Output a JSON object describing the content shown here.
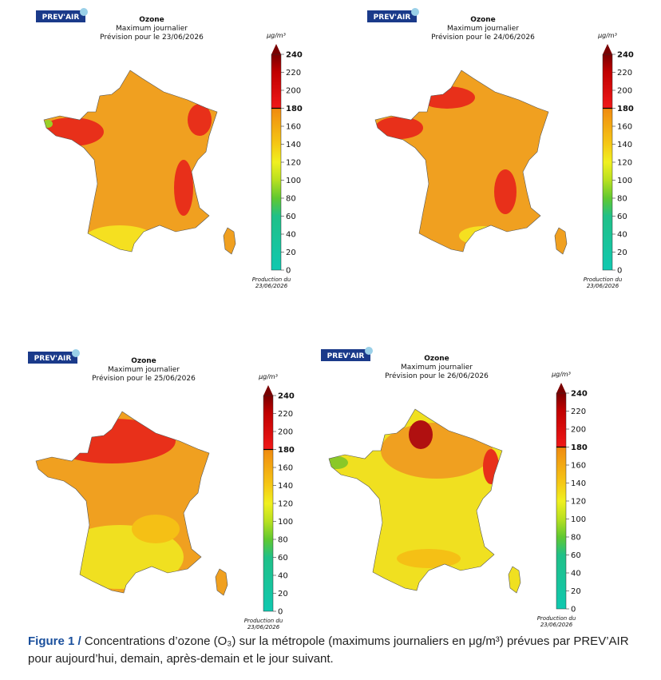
{
  "figures": [
    {
      "logo": "PREV'AIR",
      "title": "Ozone",
      "subtitle": "Maximum journalier",
      "forecast": "Prévision pour le 23/06/2026",
      "unit": "μg/m³",
      "scale": [
        "0",
        "20",
        "40",
        "60",
        "80",
        "100",
        "120",
        "140",
        "160",
        "180",
        "200",
        "220",
        "240"
      ],
      "production": [
        "Production du",
        "23/06/2026"
      ]
    },
    {
      "logo": "PREV'AIR",
      "title": "Ozone",
      "subtitle": "Maximum journalier",
      "forecast": "Prévision pour le 24/06/2026",
      "unit": "μg/m³",
      "scale": [
        "0",
        "20",
        "40",
        "60",
        "80",
        "100",
        "120",
        "140",
        "160",
        "180",
        "200",
        "220",
        "240"
      ],
      "production": [
        "Production du",
        "23/06/2026"
      ]
    },
    {
      "logo": "PREV'AIR",
      "title": "Ozone",
      "subtitle": "Maximum journalier",
      "forecast": "Prévision pour le 25/06/2026",
      "unit": "μg/m³",
      "scale": [
        "0",
        "20",
        "40",
        "60",
        "80",
        "100",
        "120",
        "140",
        "160",
        "180",
        "200",
        "220",
        "240"
      ],
      "production": [
        "Production du",
        "23/06/2026"
      ]
    },
    {
      "logo": "PREV'AIR",
      "title": "Ozone",
      "subtitle": "Maximum journalier",
      "forecast": "Prévision pour le 26/06/2026",
      "unit": "μg/m³",
      "scale": [
        "0",
        "20",
        "40",
        "60",
        "80",
        "100",
        "120",
        "140",
        "160",
        "180",
        "200",
        "220",
        "240"
      ],
      "production": [
        "Production du",
        "23/06/2026"
      ]
    }
  ],
  "caption": {
    "label": "Figure 1 /",
    "text": "Concentrations d’ozone (O₃) sur la métropole (maximums journaliers en μg/m³) prévues par PREV’AIR pour aujourd’hui, demain, après-demain et le jour suivant."
  }
}
